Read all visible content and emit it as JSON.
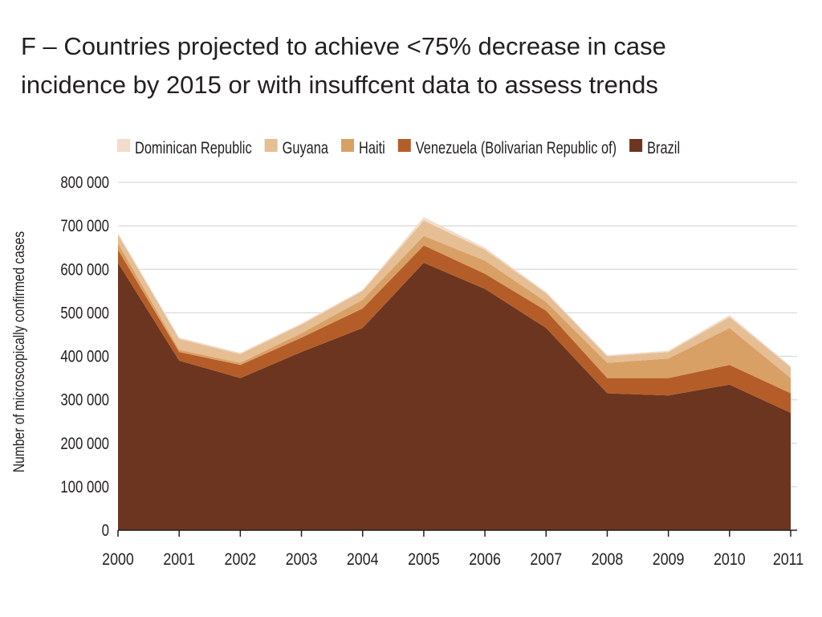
{
  "title_line1": "F – Countries projected to achieve <75% decrease in case",
  "title_line2": "incidence by 2015 or with insuffcent data to assess trends",
  "chart_data": {
    "type": "area",
    "stacked": true,
    "ylabel": "Number of microscopically confirmed cases",
    "ylim": [
      0,
      800000
    ],
    "yticks": [
      0,
      100000,
      200000,
      300000,
      400000,
      500000,
      600000,
      700000,
      800000
    ],
    "ytick_labels": [
      "0",
      "100 000",
      "200 000",
      "300 000",
      "400 000",
      "500 000",
      "600 000",
      "700 000",
      "800 000"
    ],
    "x": [
      "2000",
      "2001",
      "2002",
      "2003",
      "2004",
      "2005",
      "2006",
      "2007",
      "2008",
      "2009",
      "2010",
      "2011"
    ],
    "grid": true,
    "legend_position": "top",
    "series": [
      {
        "name": "Brazil",
        "color": "#6b3520",
        "values": [
          615000,
          390000,
          350000,
          410000,
          465000,
          615000,
          555000,
          465000,
          315000,
          310000,
          335000,
          270000
        ]
      },
      {
        "name": "Venezuela (Bolivarian Republic of)",
        "color": "#b55d28",
        "values": [
          30000,
          20000,
          30000,
          33000,
          45000,
          40000,
          35000,
          40000,
          35000,
          40000,
          45000,
          45000
        ]
      },
      {
        "name": "Haiti",
        "color": "#d9a066",
        "values": [
          15000,
          5000,
          5000,
          10000,
          20000,
          22000,
          30000,
          20000,
          35000,
          45000,
          85000,
          35000
        ]
      },
      {
        "name": "Guyana",
        "color": "#e6be94",
        "values": [
          20000,
          25000,
          20000,
          20000,
          20000,
          35000,
          25000,
          20000,
          15000,
          15000,
          25000,
          25000
        ]
      },
      {
        "name": "Dominican Republic",
        "color": "#f2dccb",
        "values": [
          3000,
          3000,
          3000,
          3000,
          3000,
          8000,
          5000,
          3000,
          3000,
          3000,
          5000,
          2000
        ]
      }
    ],
    "legend_order": [
      "Dominican Republic",
      "Guyana",
      "Haiti",
      "Venezuela (Bolivarian Republic of)",
      "Brazil"
    ],
    "gridline_color": "#d9d9d9",
    "axis_color": "#231f20"
  }
}
